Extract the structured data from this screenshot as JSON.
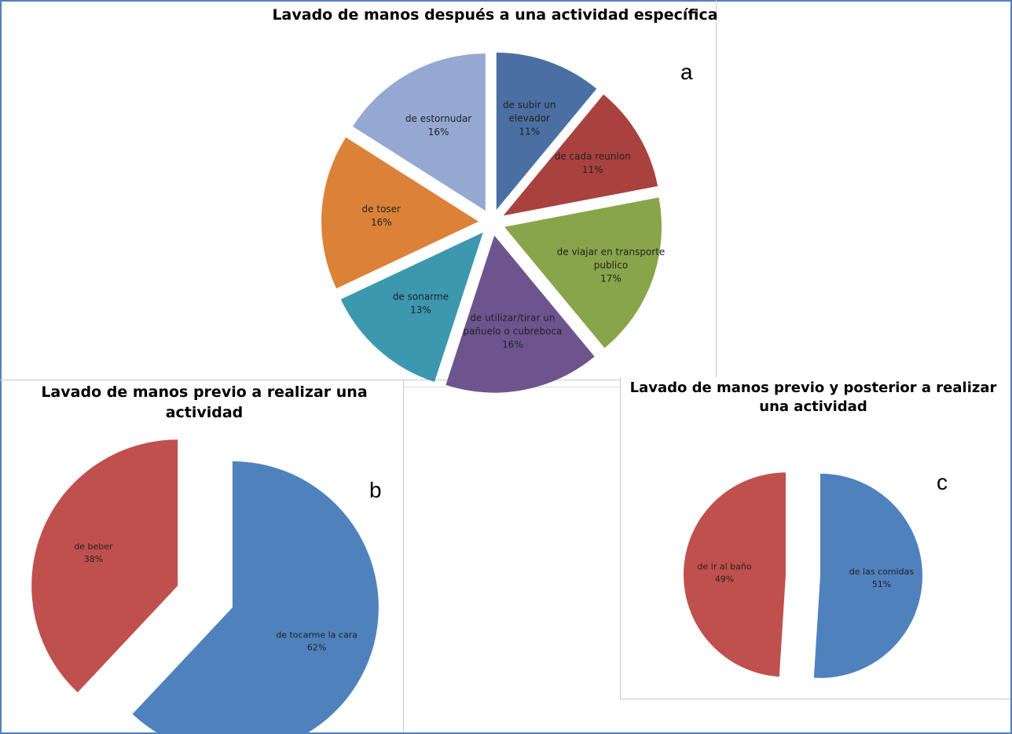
{
  "chart_data": [
    {
      "type": "pie",
      "id": "a",
      "title": "Lavado de manos después a una actividad específica",
      "panel_letter": "a",
      "slices": [
        {
          "label": [
            "de subir un",
            "elevador"
          ],
          "pct_label": "11%",
          "value": 11,
          "color": "#4a6fa3"
        },
        {
          "label": [
            "de cada reunion"
          ],
          "pct_label": "11%",
          "value": 11,
          "color": "#a9413f"
        },
        {
          "label": [
            "de viajar en transporte",
            "publico"
          ],
          "pct_label": "17%",
          "value": 17,
          "color": "#88a54a"
        },
        {
          "label": [
            "de utilizar/tirar un",
            "pañuelo o cubreboca"
          ],
          "pct_label": "16%",
          "value": 16,
          "color": "#6d548f"
        },
        {
          "label": [
            "de sonarme"
          ],
          "pct_label": "13%",
          "value": 13,
          "color": "#3c98ae"
        },
        {
          "label": [
            "de toser"
          ],
          "pct_label": "16%",
          "value": 16,
          "color": "#dc8238"
        },
        {
          "label": [
            "de estornudar"
          ],
          "pct_label": "16%",
          "value": 16,
          "color": "#95a8d1"
        }
      ]
    },
    {
      "type": "pie",
      "id": "b",
      "title": "Lavado de manos previo a realizar una actividad",
      "panel_letter": "b",
      "slices": [
        {
          "label": [
            "de tocarme la cara"
          ],
          "pct_label": "62%",
          "value": 62,
          "color": "#4f81bd"
        },
        {
          "label": [
            "de beber"
          ],
          "pct_label": "38%",
          "value": 38,
          "color": "#c0504d"
        }
      ]
    },
    {
      "type": "pie",
      "id": "c",
      "title": "Lavado de manos previo y posterior a realizar una actividad",
      "panel_letter": "c",
      "slices": [
        {
          "label": [
            "de las comidas"
          ],
          "pct_label": "51%",
          "value": 51,
          "color": "#4f81bd"
        },
        {
          "label": [
            "de ir al baño"
          ],
          "pct_label": "49%",
          "value": 49,
          "color": "#c0504d"
        }
      ]
    }
  ]
}
